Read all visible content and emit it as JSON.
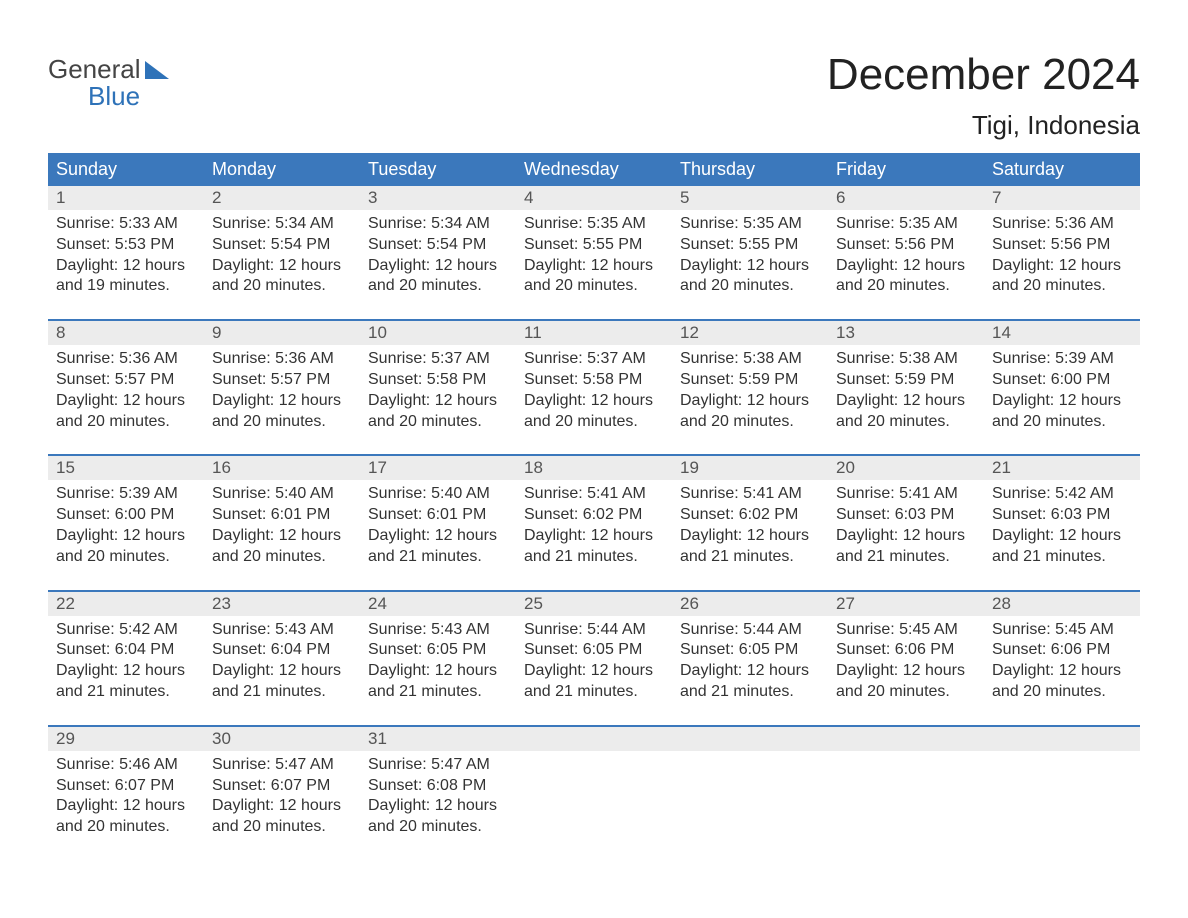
{
  "brand": {
    "line1": "General",
    "line2": "Blue"
  },
  "title": "December 2024",
  "location": "Tigi, Indonesia",
  "colors": {
    "header_bg": "#3b78bc",
    "header_text": "#ffffff",
    "daynum_bg": "#ececec",
    "daynum_text": "#555555",
    "body_text": "#333333",
    "accent": "#2e72b8",
    "page_bg": "#ffffff"
  },
  "weekday_labels": [
    "Sunday",
    "Monday",
    "Tuesday",
    "Wednesday",
    "Thursday",
    "Friday",
    "Saturday"
  ],
  "days": [
    {
      "n": "1",
      "sunrise": "Sunrise: 5:33 AM",
      "sunset": "Sunset: 5:53 PM",
      "d1": "Daylight: 12 hours",
      "d2": "and 19 minutes."
    },
    {
      "n": "2",
      "sunrise": "Sunrise: 5:34 AM",
      "sunset": "Sunset: 5:54 PM",
      "d1": "Daylight: 12 hours",
      "d2": "and 20 minutes."
    },
    {
      "n": "3",
      "sunrise": "Sunrise: 5:34 AM",
      "sunset": "Sunset: 5:54 PM",
      "d1": "Daylight: 12 hours",
      "d2": "and 20 minutes."
    },
    {
      "n": "4",
      "sunrise": "Sunrise: 5:35 AM",
      "sunset": "Sunset: 5:55 PM",
      "d1": "Daylight: 12 hours",
      "d2": "and 20 minutes."
    },
    {
      "n": "5",
      "sunrise": "Sunrise: 5:35 AM",
      "sunset": "Sunset: 5:55 PM",
      "d1": "Daylight: 12 hours",
      "d2": "and 20 minutes."
    },
    {
      "n": "6",
      "sunrise": "Sunrise: 5:35 AM",
      "sunset": "Sunset: 5:56 PM",
      "d1": "Daylight: 12 hours",
      "d2": "and 20 minutes."
    },
    {
      "n": "7",
      "sunrise": "Sunrise: 5:36 AM",
      "sunset": "Sunset: 5:56 PM",
      "d1": "Daylight: 12 hours",
      "d2": "and 20 minutes."
    },
    {
      "n": "8",
      "sunrise": "Sunrise: 5:36 AM",
      "sunset": "Sunset: 5:57 PM",
      "d1": "Daylight: 12 hours",
      "d2": "and 20 minutes."
    },
    {
      "n": "9",
      "sunrise": "Sunrise: 5:36 AM",
      "sunset": "Sunset: 5:57 PM",
      "d1": "Daylight: 12 hours",
      "d2": "and 20 minutes."
    },
    {
      "n": "10",
      "sunrise": "Sunrise: 5:37 AM",
      "sunset": "Sunset: 5:58 PM",
      "d1": "Daylight: 12 hours",
      "d2": "and 20 minutes."
    },
    {
      "n": "11",
      "sunrise": "Sunrise: 5:37 AM",
      "sunset": "Sunset: 5:58 PM",
      "d1": "Daylight: 12 hours",
      "d2": "and 20 minutes."
    },
    {
      "n": "12",
      "sunrise": "Sunrise: 5:38 AM",
      "sunset": "Sunset: 5:59 PM",
      "d1": "Daylight: 12 hours",
      "d2": "and 20 minutes."
    },
    {
      "n": "13",
      "sunrise": "Sunrise: 5:38 AM",
      "sunset": "Sunset: 5:59 PM",
      "d1": "Daylight: 12 hours",
      "d2": "and 20 minutes."
    },
    {
      "n": "14",
      "sunrise": "Sunrise: 5:39 AM",
      "sunset": "Sunset: 6:00 PM",
      "d1": "Daylight: 12 hours",
      "d2": "and 20 minutes."
    },
    {
      "n": "15",
      "sunrise": "Sunrise: 5:39 AM",
      "sunset": "Sunset: 6:00 PM",
      "d1": "Daylight: 12 hours",
      "d2": "and 20 minutes."
    },
    {
      "n": "16",
      "sunrise": "Sunrise: 5:40 AM",
      "sunset": "Sunset: 6:01 PM",
      "d1": "Daylight: 12 hours",
      "d2": "and 20 minutes."
    },
    {
      "n": "17",
      "sunrise": "Sunrise: 5:40 AM",
      "sunset": "Sunset: 6:01 PM",
      "d1": "Daylight: 12 hours",
      "d2": "and 21 minutes."
    },
    {
      "n": "18",
      "sunrise": "Sunrise: 5:41 AM",
      "sunset": "Sunset: 6:02 PM",
      "d1": "Daylight: 12 hours",
      "d2": "and 21 minutes."
    },
    {
      "n": "19",
      "sunrise": "Sunrise: 5:41 AM",
      "sunset": "Sunset: 6:02 PM",
      "d1": "Daylight: 12 hours",
      "d2": "and 21 minutes."
    },
    {
      "n": "20",
      "sunrise": "Sunrise: 5:41 AM",
      "sunset": "Sunset: 6:03 PM",
      "d1": "Daylight: 12 hours",
      "d2": "and 21 minutes."
    },
    {
      "n": "21",
      "sunrise": "Sunrise: 5:42 AM",
      "sunset": "Sunset: 6:03 PM",
      "d1": "Daylight: 12 hours",
      "d2": "and 21 minutes."
    },
    {
      "n": "22",
      "sunrise": "Sunrise: 5:42 AM",
      "sunset": "Sunset: 6:04 PM",
      "d1": "Daylight: 12 hours",
      "d2": "and 21 minutes."
    },
    {
      "n": "23",
      "sunrise": "Sunrise: 5:43 AM",
      "sunset": "Sunset: 6:04 PM",
      "d1": "Daylight: 12 hours",
      "d2": "and 21 minutes."
    },
    {
      "n": "24",
      "sunrise": "Sunrise: 5:43 AM",
      "sunset": "Sunset: 6:05 PM",
      "d1": "Daylight: 12 hours",
      "d2": "and 21 minutes."
    },
    {
      "n": "25",
      "sunrise": "Sunrise: 5:44 AM",
      "sunset": "Sunset: 6:05 PM",
      "d1": "Daylight: 12 hours",
      "d2": "and 21 minutes."
    },
    {
      "n": "26",
      "sunrise": "Sunrise: 5:44 AM",
      "sunset": "Sunset: 6:05 PM",
      "d1": "Daylight: 12 hours",
      "d2": "and 21 minutes."
    },
    {
      "n": "27",
      "sunrise": "Sunrise: 5:45 AM",
      "sunset": "Sunset: 6:06 PM",
      "d1": "Daylight: 12 hours",
      "d2": "and 20 minutes."
    },
    {
      "n": "28",
      "sunrise": "Sunrise: 5:45 AM",
      "sunset": "Sunset: 6:06 PM",
      "d1": "Daylight: 12 hours",
      "d2": "and 20 minutes."
    },
    {
      "n": "29",
      "sunrise": "Sunrise: 5:46 AM",
      "sunset": "Sunset: 6:07 PM",
      "d1": "Daylight: 12 hours",
      "d2": "and 20 minutes."
    },
    {
      "n": "30",
      "sunrise": "Sunrise: 5:47 AM",
      "sunset": "Sunset: 6:07 PM",
      "d1": "Daylight: 12 hours",
      "d2": "and 20 minutes."
    },
    {
      "n": "31",
      "sunrise": "Sunrise: 5:47 AM",
      "sunset": "Sunset: 6:08 PM",
      "d1": "Daylight: 12 hours",
      "d2": "and 20 minutes."
    }
  ]
}
